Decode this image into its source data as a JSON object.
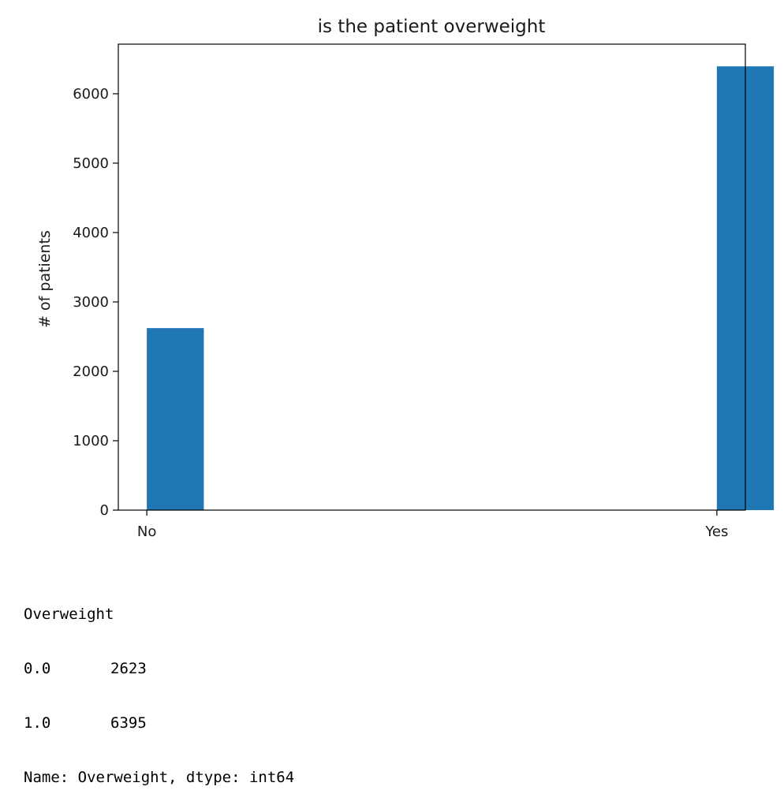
{
  "chart_data": {
    "type": "bar",
    "title": "is the patient overweight",
    "xlabel": "",
    "ylabel": "# of patients",
    "categories": [
      "No",
      "Yes"
    ],
    "values": [
      2623,
      6395
    ],
    "yticks": [
      0,
      1000,
      2000,
      3000,
      4000,
      5000,
      6000
    ],
    "ylim": [
      0,
      6714.75
    ],
    "xlim": [
      -0.05,
      1.05
    ],
    "bar_width": 0.1,
    "bar_color": "#1f77b4",
    "grid": false,
    "legend": "none"
  },
  "output": {
    "header": "Overweight",
    "rows": [
      {
        "index": "0.0",
        "value": "2623"
      },
      {
        "index": "1.0",
        "value": "6395"
      }
    ],
    "footer": "Name: Overweight, dtype: int64"
  }
}
